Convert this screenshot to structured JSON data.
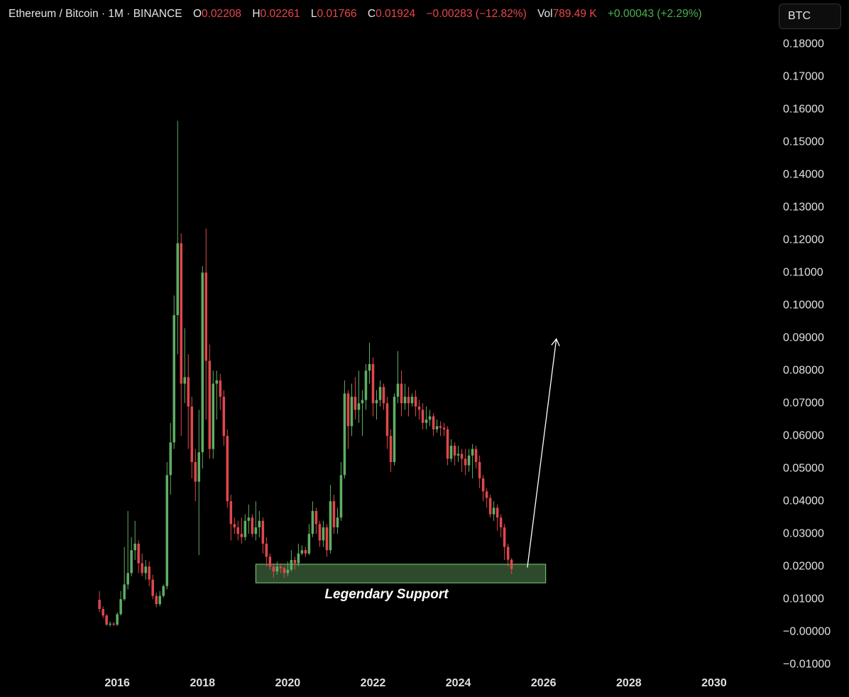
{
  "chart_data": {
    "type": "candlestick",
    "header": {
      "symbol": "Ethereum / Bitcoin · 1M · BINANCE",
      "o_label": "O",
      "h_label": "H",
      "l_label": "L",
      "c_label": "C",
      "change": "−0.00283 (−12.82%)",
      "vol_label": "Vol",
      "vol": "789.49 K",
      "vol_change": "+0.00043 (+2.29%)"
    },
    "currency_button": "BTC",
    "up_color": "#5fae63",
    "down_color": "#e0474c",
    "annotation": {
      "text": "Legendary Support",
      "x": [
        2019.25,
        2026.05
      ],
      "y": [
        0.015,
        0.0207
      ],
      "color": "#2e4a2c"
    },
    "arrow": {
      "x": [
        2025.62,
        2026.3
      ],
      "y": [
        0.0197,
        0.0897
      ]
    },
    "xlim": [
      2013.25,
      2031.4
    ],
    "xticks": [
      2016,
      2018,
      2020,
      2022,
      2024,
      2026,
      2028,
      2030
    ],
    "ylim": [
      -0.013,
      0.1935
    ],
    "yticks": [
      {
        "value": 0.18,
        "label": "0.18000"
      },
      {
        "value": 0.17,
        "label": "0.17000"
      },
      {
        "value": 0.16,
        "label": "0.16000"
      },
      {
        "value": 0.15,
        "label": "0.15000"
      },
      {
        "value": 0.14,
        "label": "0.14000"
      },
      {
        "value": 0.13,
        "label": "0.13000"
      },
      {
        "value": 0.12,
        "label": "0.12000"
      },
      {
        "value": 0.11,
        "label": "0.11000"
      },
      {
        "value": 0.1,
        "label": "0.10000"
      },
      {
        "value": 0.09,
        "label": "0.09000"
      },
      {
        "value": 0.08,
        "label": "0.08000"
      },
      {
        "value": 0.07,
        "label": "0.07000"
      },
      {
        "value": 0.06,
        "label": "0.06000"
      },
      {
        "value": 0.05,
        "label": "0.05000"
      },
      {
        "value": 0.04,
        "label": "0.04000"
      },
      {
        "value": 0.03,
        "label": "0.03000"
      },
      {
        "value": 0.02,
        "label": "0.02000"
      },
      {
        "value": 0.01,
        "label": "0.01000"
      },
      {
        "value": 0,
        "label": "−0.00000"
      },
      {
        "value": -0.01,
        "label": "−0.01000"
      }
    ],
    "x": [
      2015.583,
      2015.667,
      2015.75,
      2015.833,
      2015.917,
      2016,
      2016.083,
      2016.167,
      2016.25,
      2016.333,
      2016.417,
      2016.5,
      2016.583,
      2016.667,
      2016.75,
      2016.833,
      2016.917,
      2017,
      2017.083,
      2017.167,
      2017.25,
      2017.333,
      2017.417,
      2017.5,
      2017.583,
      2017.667,
      2017.75,
      2017.833,
      2017.917,
      2018,
      2018.083,
      2018.167,
      2018.25,
      2018.333,
      2018.417,
      2018.5,
      2018.583,
      2018.667,
      2018.75,
      2018.833,
      2018.917,
      2019,
      2019.083,
      2019.167,
      2019.25,
      2019.333,
      2019.417,
      2019.5,
      2019.583,
      2019.667,
      2019.75,
      2019.833,
      2019.917,
      2020,
      2020.083,
      2020.167,
      2020.25,
      2020.333,
      2020.417,
      2020.5,
      2020.583,
      2020.667,
      2020.75,
      2020.833,
      2020.917,
      2021,
      2021.083,
      2021.167,
      2021.25,
      2021.333,
      2021.417,
      2021.5,
      2021.583,
      2021.667,
      2021.75,
      2021.833,
      2021.917,
      2022,
      2022.083,
      2022.167,
      2022.25,
      2022.333,
      2022.417,
      2022.5,
      2022.583,
      2022.667,
      2022.75,
      2022.833,
      2022.917,
      2023,
      2023.083,
      2023.167,
      2023.25,
      2023.333,
      2023.417,
      2023.5,
      2023.583,
      2023.667,
      2023.75,
      2023.833,
      2023.917,
      2024,
      2024.083,
      2024.167,
      2024.25,
      2024.333,
      2024.417,
      2024.5,
      2024.583,
      2024.667,
      2024.75,
      2024.833,
      2024.917,
      2025,
      2025.083,
      2025.167,
      2025.25
    ],
    "open": [
      0.0098,
      0.007,
      0.005,
      0.0022,
      0.0025,
      0.0022,
      0.0054,
      0.01,
      0.0145,
      0.018,
      0.025,
      0.027,
      0.021,
      0.018,
      0.02,
      0.016,
      0.011,
      0.0085,
      0.011,
      0.014,
      0.048,
      0.058,
      0.097,
      0.119,
      0.076,
      0.078,
      0.069,
      0.052,
      0.046,
      0.055,
      0.11,
      0.083,
      0.056,
      0.076,
      0.077,
      0.072,
      0.06,
      0.04,
      0.033,
      0.032,
      0.03,
      0.029,
      0.034,
      0.035,
      0.03,
      0.032,
      0.034,
      0.027,
      0.023,
      0.02,
      0.0185,
      0.02,
      0.0195,
      0.018,
      0.019,
      0.022,
      0.021,
      0.024,
      0.025,
      0.024,
      0.03,
      0.037,
      0.033,
      0.028,
      0.032,
      0.025,
      0.04,
      0.032,
      0.035,
      0.048,
      0.073,
      0.063,
      0.072,
      0.068,
      0.07,
      0.071,
      0.08,
      0.082,
      0.07,
      0.071,
      0.075,
      0.07,
      0.06,
      0.052,
      0.072,
      0.076,
      0.07,
      0.072,
      0.07,
      0.072,
      0.069,
      0.068,
      0.064,
      0.065,
      0.066,
      0.062,
      0.063,
      0.0625,
      0.062,
      0.053,
      0.057,
      0.054,
      0.0545,
      0.053,
      0.051,
      0.054,
      0.056,
      0.052,
      0.047,
      0.043,
      0.041,
      0.036,
      0.038,
      0.035,
      0.032,
      0.026,
      0.02208
    ],
    "high": [
      0.0125,
      0.0078,
      0.0055,
      0.0032,
      0.003,
      0.006,
      0.0125,
      0.026,
      0.037,
      0.029,
      0.034,
      0.028,
      0.024,
      0.022,
      0.0215,
      0.0175,
      0.012,
      0.0125,
      0.0145,
      0.052,
      0.064,
      0.103,
      0.1565,
      0.122,
      0.093,
      0.085,
      0.072,
      0.056,
      0.068,
      0.112,
      0.1235,
      0.088,
      0.08,
      0.08,
      0.079,
      0.074,
      0.062,
      0.042,
      0.035,
      0.034,
      0.035,
      0.036,
      0.039,
      0.036,
      0.04,
      0.037,
      0.035,
      0.029,
      0.024,
      0.021,
      0.0215,
      0.021,
      0.02,
      0.0215,
      0.025,
      0.023,
      0.027,
      0.0265,
      0.026,
      0.033,
      0.04,
      0.038,
      0.034,
      0.034,
      0.033,
      0.045,
      0.042,
      0.038,
      0.052,
      0.077,
      0.074,
      0.076,
      0.078,
      0.08,
      0.074,
      0.082,
      0.0885,
      0.084,
      0.074,
      0.077,
      0.076,
      0.072,
      0.062,
      0.073,
      0.086,
      0.08,
      0.076,
      0.075,
      0.073,
      0.074,
      0.071,
      0.07,
      0.069,
      0.068,
      0.067,
      0.065,
      0.0645,
      0.064,
      0.063,
      0.059,
      0.058,
      0.057,
      0.056,
      0.056,
      0.056,
      0.0575,
      0.057,
      0.054,
      0.048,
      0.044,
      0.042,
      0.04,
      0.039,
      0.036,
      0.033,
      0.027,
      0.02261
    ],
    "low": [
      0.006,
      0.0042,
      0.0018,
      0.0016,
      0.0018,
      0.0018,
      0.005,
      0.0095,
      0.013,
      0.017,
      0.022,
      0.018,
      0.017,
      0.016,
      0.014,
      0.01,
      0.0075,
      0.0078,
      0.0105,
      0.013,
      0.042,
      0.056,
      0.085,
      0.06,
      0.07,
      0.056,
      0.047,
      0.04,
      0.0235,
      0.05,
      0.065,
      0.053,
      0.053,
      0.065,
      0.068,
      0.057,
      0.038,
      0.028,
      0.03,
      0.028,
      0.027,
      0.028,
      0.03,
      0.029,
      0.028,
      0.029,
      0.024,
      0.02,
      0.019,
      0.0165,
      0.0175,
      0.018,
      0.0165,
      0.017,
      0.0185,
      0.019,
      0.02,
      0.0235,
      0.023,
      0.0235,
      0.029,
      0.03,
      0.026,
      0.026,
      0.023,
      0.024,
      0.03,
      0.03,
      0.034,
      0.047,
      0.056,
      0.06,
      0.065,
      0.064,
      0.06,
      0.068,
      0.076,
      0.066,
      0.065,
      0.069,
      0.068,
      0.056,
      0.049,
      0.051,
      0.07,
      0.066,
      0.068,
      0.066,
      0.069,
      0.066,
      0.065,
      0.062,
      0.062,
      0.063,
      0.06,
      0.061,
      0.06,
      0.06,
      0.051,
      0.052,
      0.051,
      0.052,
      0.049,
      0.048,
      0.049,
      0.047,
      0.05,
      0.044,
      0.04,
      0.038,
      0.035,
      0.034,
      0.031,
      0.029,
      0.022,
      0.02,
      0.01766
    ],
    "close": [
      0.007,
      0.005,
      0.0022,
      0.0025,
      0.0022,
      0.0054,
      0.01,
      0.0145,
      0.018,
      0.025,
      0.027,
      0.021,
      0.018,
      0.02,
      0.016,
      0.011,
      0.0085,
      0.011,
      0.014,
      0.048,
      0.058,
      0.097,
      0.119,
      0.076,
      0.078,
      0.069,
      0.052,
      0.046,
      0.055,
      0.11,
      0.083,
      0.056,
      0.076,
      0.077,
      0.072,
      0.06,
      0.04,
      0.033,
      0.032,
      0.03,
      0.029,
      0.034,
      0.035,
      0.03,
      0.032,
      0.034,
      0.027,
      0.023,
      0.02,
      0.0185,
      0.02,
      0.0195,
      0.018,
      0.019,
      0.022,
      0.021,
      0.024,
      0.025,
      0.024,
      0.03,
      0.037,
      0.033,
      0.028,
      0.032,
      0.025,
      0.04,
      0.032,
      0.035,
      0.048,
      0.073,
      0.063,
      0.072,
      0.068,
      0.07,
      0.071,
      0.08,
      0.082,
      0.07,
      0.071,
      0.075,
      0.07,
      0.06,
      0.052,
      0.072,
      0.076,
      0.07,
      0.072,
      0.07,
      0.072,
      0.069,
      0.068,
      0.064,
      0.065,
      0.066,
      0.062,
      0.063,
      0.0625,
      0.062,
      0.053,
      0.057,
      0.054,
      0.0545,
      0.053,
      0.051,
      0.054,
      0.056,
      0.052,
      0.047,
      0.043,
      0.041,
      0.036,
      0.038,
      0.035,
      0.032,
      0.026,
      0.02208,
      0.01924
    ]
  }
}
